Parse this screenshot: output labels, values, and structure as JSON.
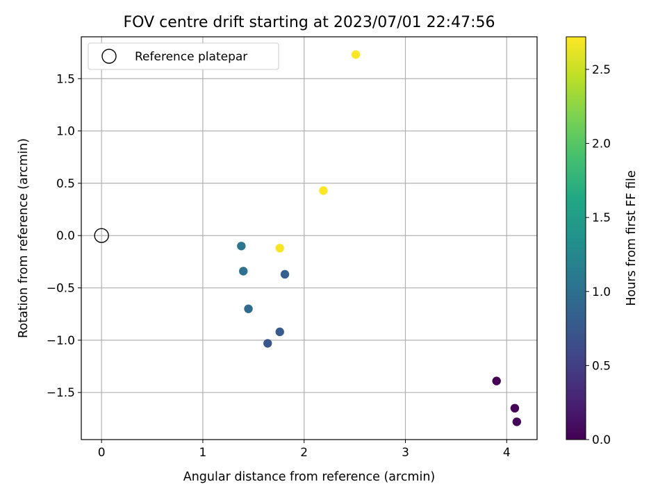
{
  "chart_data": {
    "type": "scatter",
    "title": "FOV centre drift starting at 2023/07/01 22:47:56",
    "xlabel": "Angular distance from reference (arcmin)",
    "ylabel": "Rotation from reference (arcmin)",
    "xlim": [
      -0.2,
      4.3
    ],
    "ylim": [
      -1.95,
      1.9
    ],
    "xticks": [
      0,
      1,
      2,
      3,
      4
    ],
    "xtick_labels": [
      "0",
      "1",
      "2",
      "3",
      "4"
    ],
    "yticks": [
      -1.5,
      -1.0,
      -0.5,
      0.0,
      0.5,
      1.0,
      1.5
    ],
    "ytick_labels": [
      "−1.5",
      "−1.0",
      "−0.5",
      "0.0",
      "0.5",
      "1.0",
      "1.5"
    ],
    "grid": true,
    "legend": {
      "placement": "top-left",
      "entries": [
        "Reference platepar"
      ]
    },
    "reference_point": {
      "x": 0.0,
      "y": 0.0
    },
    "points": [
      {
        "x": 3.9,
        "y": -1.39,
        "hours": 0.0
      },
      {
        "x": 4.08,
        "y": -1.65,
        "hours": 0.02
      },
      {
        "x": 4.1,
        "y": -1.78,
        "hours": 0.03
      },
      {
        "x": 1.64,
        "y": -1.03,
        "hours": 0.72
      },
      {
        "x": 1.76,
        "y": -0.92,
        "hours": 0.78
      },
      {
        "x": 1.81,
        "y": -0.37,
        "hours": 0.82
      },
      {
        "x": 1.45,
        "y": -0.7,
        "hours": 0.95
      },
      {
        "x": 1.4,
        "y": -0.34,
        "hours": 1.0
      },
      {
        "x": 1.38,
        "y": -0.1,
        "hours": 1.05
      },
      {
        "x": 1.76,
        "y": -0.12,
        "hours": 2.7
      },
      {
        "x": 2.19,
        "y": 0.43,
        "hours": 2.72
      },
      {
        "x": 2.51,
        "y": 1.73,
        "hours": 2.72
      }
    ],
    "colorbar": {
      "label": "Hours from first FF file",
      "colormap": "viridis",
      "range": [
        0.0,
        2.72
      ],
      "ticks": [
        0.0,
        0.5,
        1.0,
        1.5,
        2.0,
        2.5
      ],
      "tick_labels": [
        "0.0",
        "0.5",
        "1.0",
        "1.5",
        "2.0",
        "2.5"
      ]
    }
  }
}
